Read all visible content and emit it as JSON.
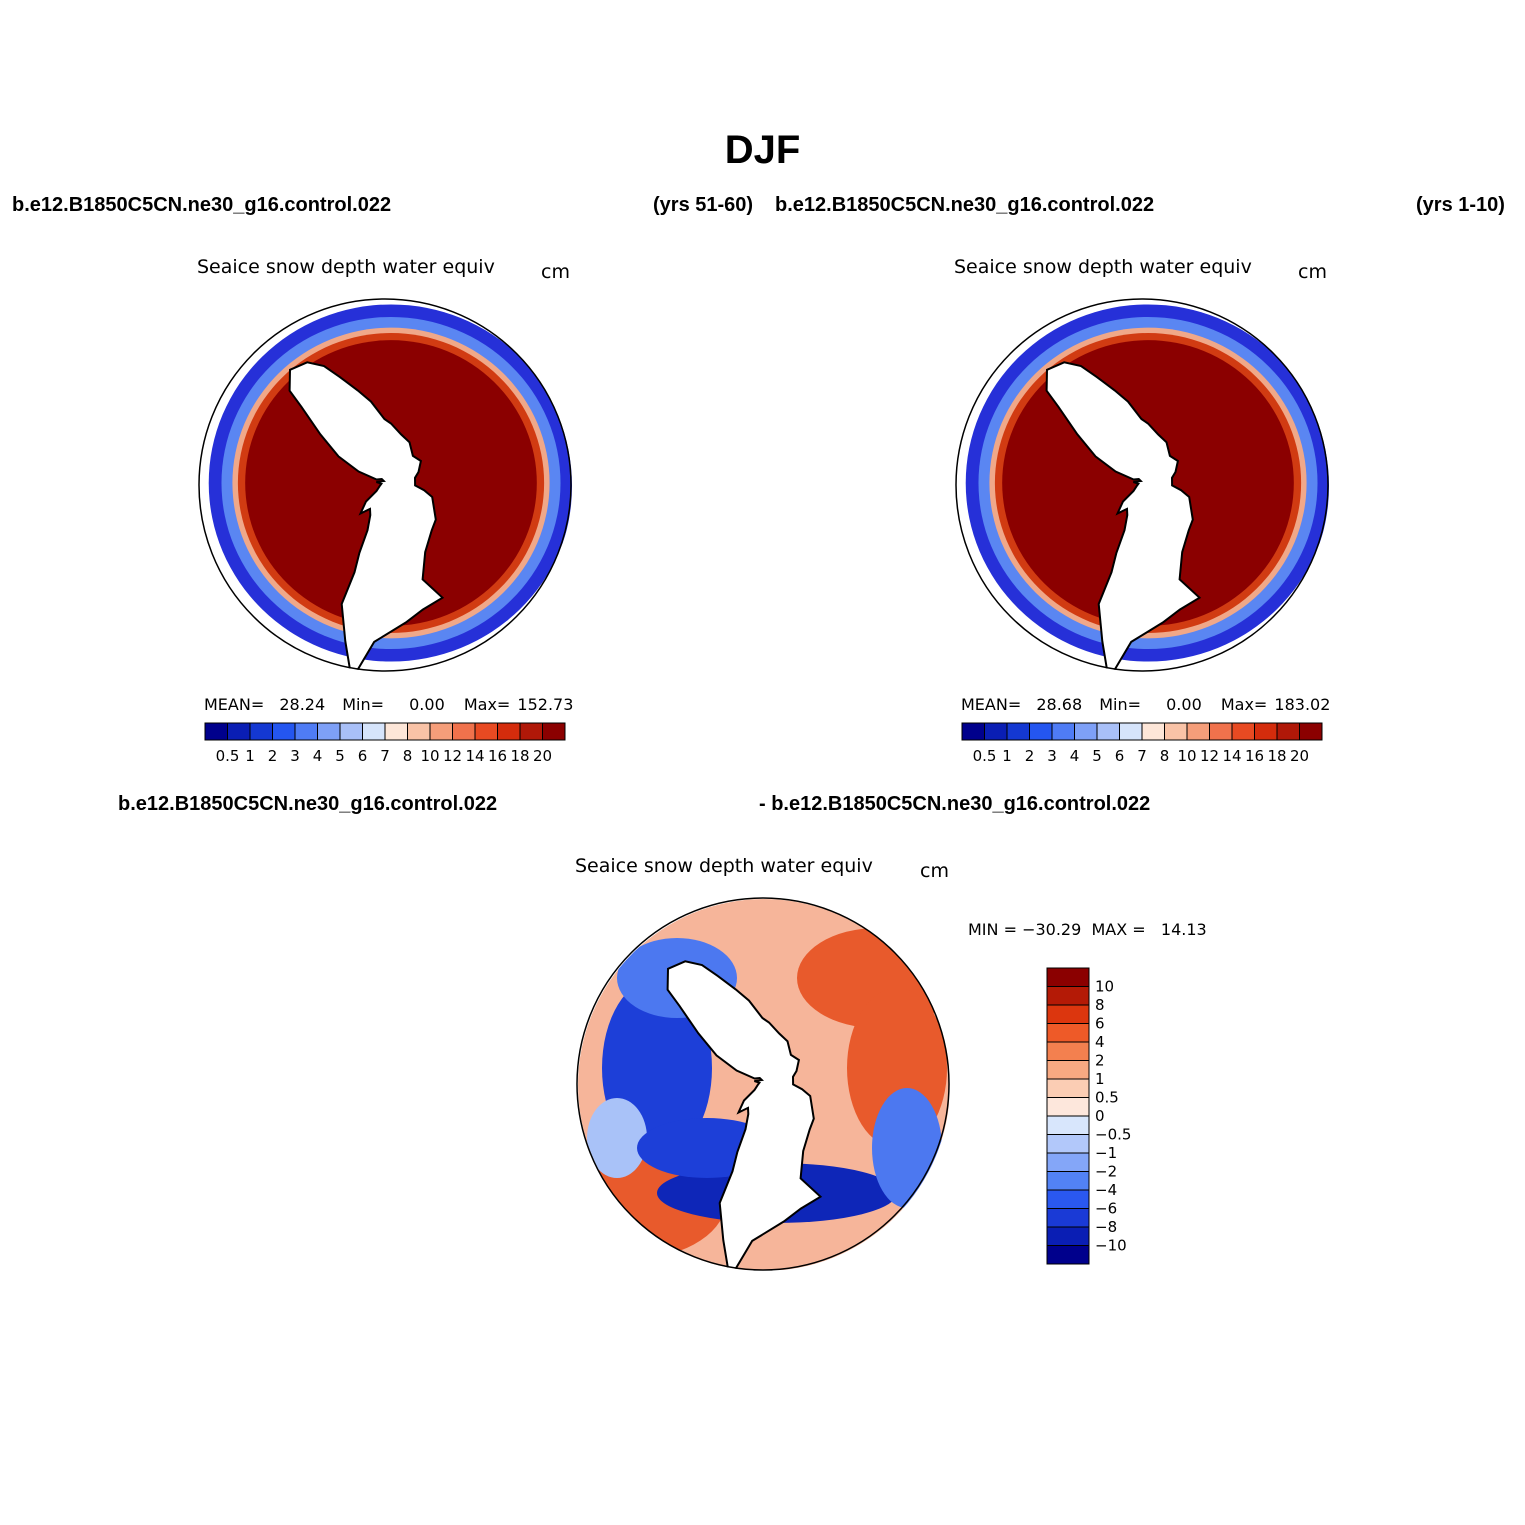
{
  "main_title": "DJF",
  "top_left": {
    "case": "b.e12.B1850C5CN.ne30_g16.control.022",
    "years": "(yrs 51-60)",
    "var": "Seaice snow depth water equiv",
    "units": "cm",
    "mean_label": "MEAN=",
    "mean": "28.24",
    "min_label": "Min=",
    "min": "0.00",
    "max_label": "Max=",
    "max": "152.73"
  },
  "top_right": {
    "case": "b.e12.B1850C5CN.ne30_g16.control.022",
    "years": "(yrs 1-10)",
    "var": "Seaice snow depth water equiv",
    "units": "cm",
    "mean_label": "MEAN=",
    "mean": "28.68",
    "min_label": "Min=",
    "min": "0.00",
    "max_label": "Max=",
    "max": "183.02"
  },
  "bottom": {
    "case_a": "b.e12.B1850C5CN.ne30_g16.control.022",
    "case_b": "- b.e12.B1850C5CN.ne30_g16.control.022",
    "var": "Seaice snow depth water equiv",
    "units": "cm",
    "minmax": "MIN = −30.29  MAX =   14.13"
  },
  "colorbar_abs": {
    "colors": [
      "#00008c",
      "#0a1eb4",
      "#1438d2",
      "#2456f0",
      "#4f7cf5",
      "#7ea0f7",
      "#a9c0f8",
      "#d6e4fb",
      "#fde6d8",
      "#f9c3a7",
      "#f59e7a",
      "#f0724c",
      "#e84a22",
      "#d42c0c",
      "#b01808",
      "#8b0000"
    ],
    "labels": [
      "0.5",
      "1",
      "2",
      "3",
      "4",
      "5",
      "6",
      "7",
      "8",
      "10",
      "12",
      "14",
      "16",
      "18",
      "20"
    ]
  },
  "colorbar_diff": {
    "colors": [
      "#00008c",
      "#0a1eb4",
      "#1a3ad6",
      "#2a58f0",
      "#5282f5",
      "#84a6f8",
      "#b2c8fa",
      "#d8e6fc",
      "#fde7dc",
      "#fbcdb4",
      "#f7a982",
      "#f3804f",
      "#ee5a28",
      "#dc360e",
      "#b41a06",
      "#8b0000"
    ],
    "labels": [
      "10",
      "8",
      "6",
      "4",
      "2",
      "1",
      "0.5",
      "0",
      "−0.5",
      "−1",
      "−2",
      "−4",
      "−6",
      "−8",
      "−10"
    ]
  },
  "maps": [
    {
      "name": "map-control-yrs-51-60",
      "type": "absolute"
    },
    {
      "name": "map-control-yrs-1-10",
      "type": "absolute"
    },
    {
      "name": "map-difference",
      "type": "difference"
    }
  ]
}
